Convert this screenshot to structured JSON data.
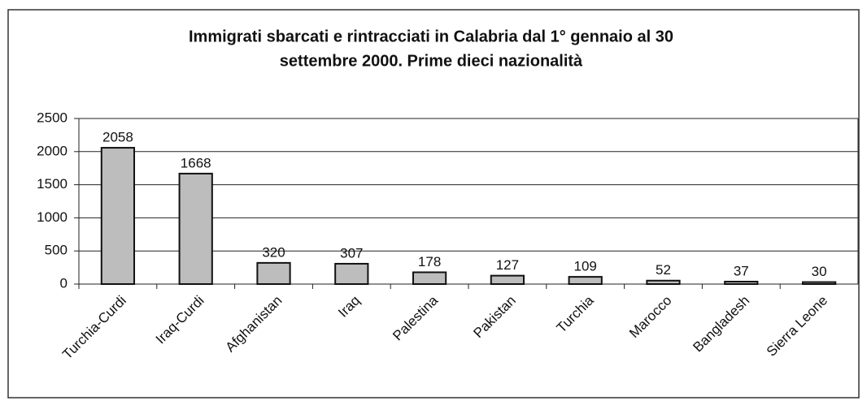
{
  "chart_data": {
    "type": "bar",
    "title": [
      "Immigrati sbarcati e rintracciati in Calabria dal 1° gennaio al 30",
      "settembre 2000. Prime dieci nazionalità"
    ],
    "categories": [
      "Turchia-Curdi",
      "Iraq-Curdi",
      "Afghanistan",
      "Iraq",
      "Palestina",
      "Pakistan",
      "Turchia",
      "Marocco",
      "Bangladesh",
      "Sierra Leone"
    ],
    "values": [
      2058,
      1668,
      320,
      307,
      178,
      127,
      109,
      52,
      37,
      30
    ],
    "color": "#bdbdbd",
    "ylim": [
      0,
      2500
    ],
    "yticks": [
      0,
      500,
      1000,
      1500,
      2000,
      2500
    ],
    "grid": true
  }
}
